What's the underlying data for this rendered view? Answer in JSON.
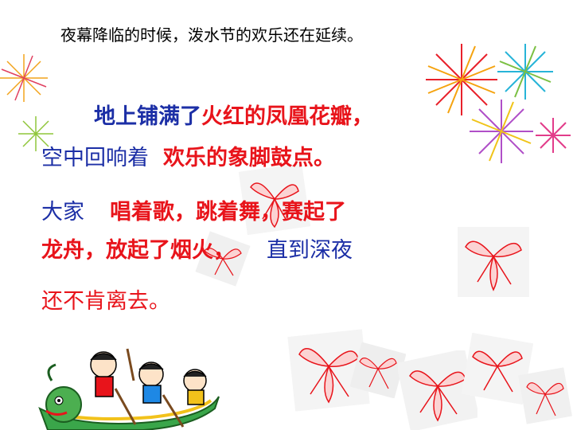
{
  "colors": {
    "red": "#e8141b",
    "blue": "#1c2fa6",
    "black": "#000000"
  },
  "intro": "夜幕降临的时候，泼水节的欢乐还在延续。",
  "line1": {
    "part1": "地上铺满了",
    "part2": "火红的凤凰花瓣，"
  },
  "line2": {
    "part1": "空中回响着",
    "part2": "欢乐的象脚鼓点。"
  },
  "line3": {
    "part1": "大家",
    "part2": "唱着歌，跳着舞，赛起了"
  },
  "line4": {
    "part1": "龙舟，放起了烟火，",
    "part2": "直到深夜"
  },
  "line5": {
    "part1": "还不肯离去。"
  },
  "decorations": {
    "fireworks": "fireworks-image",
    "flowers": "phoenix-flower-petal-image",
    "dragon_boat": "dragon-boat-rowers-image"
  }
}
